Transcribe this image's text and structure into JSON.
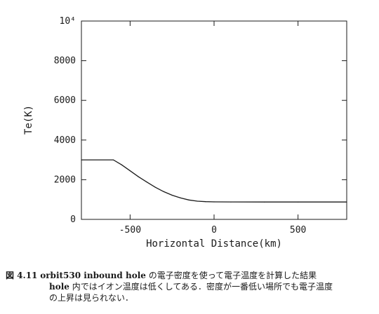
{
  "chart_data": {
    "type": "line",
    "title": "",
    "xlabel": "Horizontal Distance(km)",
    "ylabel": "Te(K)",
    "xlim": [
      -790,
      790
    ],
    "ylim": [
      0,
      10000
    ],
    "x_ticks": [
      -500,
      0,
      500
    ],
    "y_tick_labels": [
      "0",
      "2000",
      "4000",
      "6000",
      "8000",
      "10⁴"
    ],
    "y_ticks": [
      0,
      2000,
      4000,
      6000,
      8000,
      10000
    ],
    "grid": false,
    "series": [
      {
        "points": [
          [
            -790,
            3000
          ],
          [
            -600,
            3000
          ],
          [
            -550,
            2750
          ],
          [
            -500,
            2450
          ],
          [
            -450,
            2150
          ],
          [
            -400,
            1880
          ],
          [
            -350,
            1620
          ],
          [
            -300,
            1400
          ],
          [
            -250,
            1220
          ],
          [
            -200,
            1080
          ],
          [
            -150,
            980
          ],
          [
            -100,
            920
          ],
          [
            -50,
            895
          ],
          [
            0,
            885
          ],
          [
            100,
            880
          ],
          [
            300,
            878
          ],
          [
            500,
            876
          ],
          [
            790,
            875
          ]
        ]
      }
    ]
  },
  "caption": {
    "label": "図 4.11",
    "bold_part": "orbit530 inbound hole",
    "line1_rest": " の電子密度を使って電子温度を計算した結果",
    "line2_bold": "hole",
    "line2_rest": " 内ではイオン温度は低くしてある．密度が一番低い場所でも電子温度",
    "line3": "の上昇は見られない．"
  }
}
